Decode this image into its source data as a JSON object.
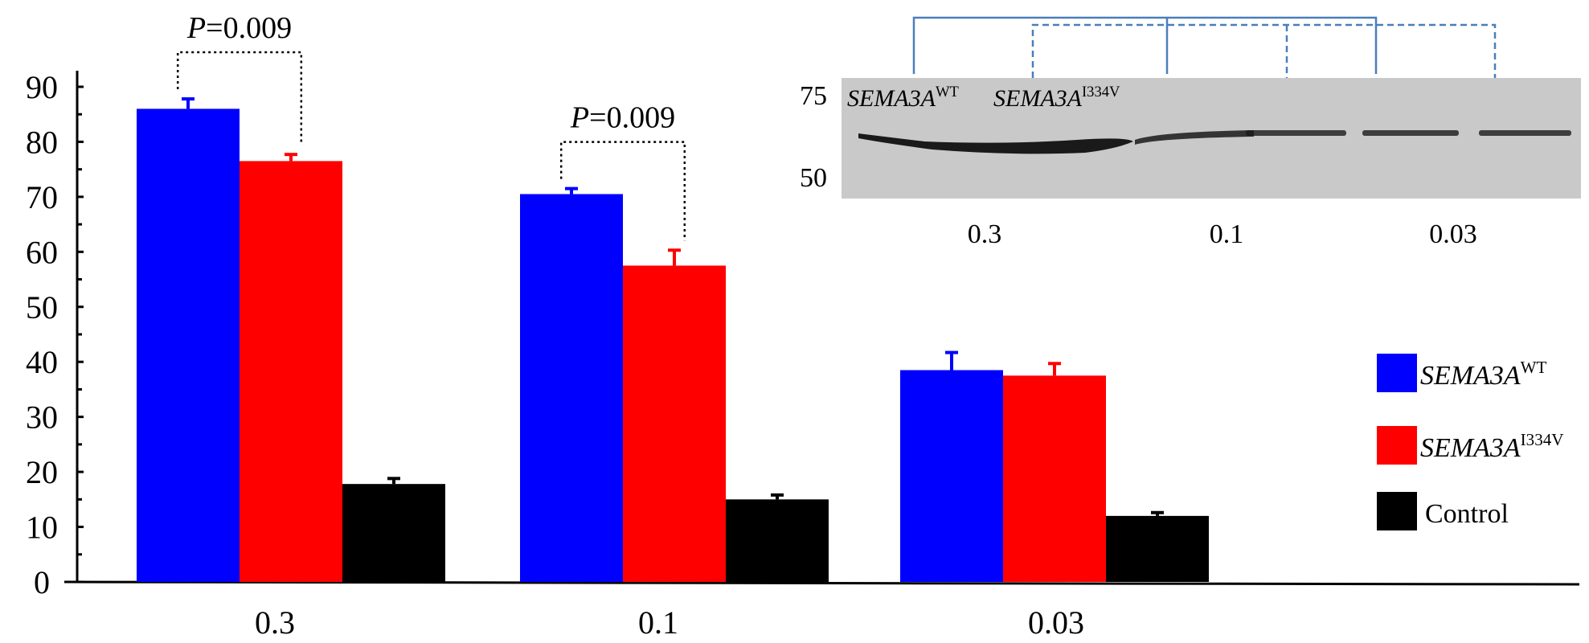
{
  "colors": {
    "wt": "#0000FF",
    "mutant": "#FF0000",
    "control": "#000000",
    "blot_lines": "#4A7EBB",
    "blot_bg": "#C9C9C9",
    "blot_band": "#1A1A1A"
  },
  "chart_data": {
    "type": "bar",
    "title": "",
    "xlabel": "",
    "ylabel": "",
    "ylim": [
      0,
      90
    ],
    "yticks": [
      "0",
      "10",
      "20",
      "30",
      "40",
      "50",
      "60",
      "70",
      "80",
      "90"
    ],
    "categories": [
      "0.3",
      "0.1",
      "0.03"
    ],
    "series": [
      {
        "name_main": "SEMA3A",
        "name_sup": "WT",
        "color_key": "wt",
        "values": [
          86,
          70.5,
          38.5
        ],
        "errors": [
          1.8,
          1.0,
          3.2
        ]
      },
      {
        "name_main": "SEMA3A",
        "name_sup": "I334V",
        "color_key": "mutant",
        "values": [
          76.5,
          57.5,
          37.5
        ],
        "errors": [
          1.2,
          2.8,
          2.2
        ]
      },
      {
        "name_main": "Control",
        "name_sup": "",
        "color_key": "control",
        "values": [
          17.8,
          15,
          12
        ],
        "errors": [
          1.0,
          0.8,
          0.6
        ]
      }
    ],
    "legend": {
      "position": "right"
    },
    "annotations": [
      {
        "text_italic": "P",
        "text": "=0.009",
        "category_index": 0
      },
      {
        "text_italic": "P",
        "text": "=0.009",
        "category_index": 1
      }
    ],
    "grid": false
  },
  "inset": {
    "mw_markers": [
      "75",
      "50"
    ],
    "lane_label_wt_main": "SEMA3A",
    "lane_label_wt_sup": "WT",
    "lane_label_mut_main": "SEMA3A",
    "lane_label_mut_sup": "I334V",
    "categories": [
      "0.3",
      "0.1",
      "0.03"
    ]
  }
}
